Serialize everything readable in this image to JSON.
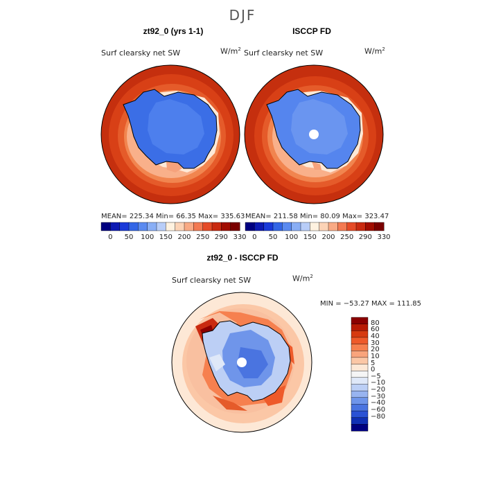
{
  "season": "DJF",
  "panels": [
    {
      "title": "zt92_0 (yrs 1-1)",
      "variable": "Surf clearsky net SW",
      "units_base": "W/m",
      "units_exp": "2",
      "stats": "MEAN= 225.34  Min=  66.35  Max= 335.63"
    },
    {
      "title": "ISCCP FD",
      "variable": "Surf clearsky net SW",
      "units_base": "W/m",
      "units_exp": "2",
      "stats": "MEAN= 211.58  Min=  80.09  Max= 323.47"
    }
  ],
  "abs_colorbar": {
    "tick_labels": [
      "0",
      "50",
      "100",
      "150",
      "200",
      "250",
      "290",
      "330"
    ],
    "colors": [
      "#000080",
      "#0d1ab3",
      "#1a3ad9",
      "#3366e6",
      "#5a8af0",
      "#89aef5",
      "#b8cdf8",
      "#fff2e0",
      "#fcd3b6",
      "#f9aa85",
      "#f37a52",
      "#e54b27",
      "#c92a10",
      "#a10d00",
      "#7a0000"
    ]
  },
  "diff_panel": {
    "title": "zt92_0 - ISCCP FD",
    "variable": "Surf clearsky net SW",
    "units_base": "W/m",
    "units_exp": "2",
    "stats": "MIN = −53.27 MAX = 111.85"
  },
  "diff_colorbar": {
    "tick_labels": [
      "80",
      "60",
      "40",
      "30",
      "20",
      "10",
      "5",
      "0",
      "−5",
      "−10",
      "−20",
      "−30",
      "−40",
      "−60",
      "−80"
    ],
    "colors": [
      "#8b0000",
      "#b81a04",
      "#d63a10",
      "#ee5a2a",
      "#f6804f",
      "#f9a47c",
      "#fbc7a6",
      "#fde8d6",
      "#f5f5f5",
      "#dfe8f8",
      "#bccff5",
      "#98b4f0",
      "#6f95ea",
      "#4a74e0",
      "#2a52d4",
      "#1030b4",
      "#000080"
    ]
  },
  "chart_data": [
    {
      "type": "heatmap",
      "title": "zt92_0 (yrs 1-1)",
      "description_variable": "Surf clearsky net SW",
      "units": "W/m2",
      "projection": "south-polar-stereographic",
      "mean": 225.34,
      "min": 66.35,
      "max": 335.63,
      "levels": [
        0,
        25,
        50,
        75,
        100,
        125,
        150,
        175,
        200,
        225,
        250,
        270,
        290,
        310,
        330
      ]
    },
    {
      "type": "heatmap",
      "title": "ISCCP FD",
      "description_variable": "Surf clearsky net SW",
      "units": "W/m2",
      "projection": "south-polar-stereographic",
      "mean": 211.58,
      "min": 80.09,
      "max": 323.47,
      "levels": [
        0,
        25,
        50,
        75,
        100,
        125,
        150,
        175,
        200,
        225,
        250,
        270,
        290,
        310,
        330
      ]
    },
    {
      "type": "heatmap",
      "title": "zt92_0 - ISCCP FD",
      "description_variable": "Surf clearsky net SW",
      "units": "W/m2",
      "projection": "south-polar-stereographic",
      "min": -53.27,
      "max": 111.85,
      "levels": [
        -80,
        -60,
        -40,
        -30,
        -20,
        -10,
        -5,
        0,
        5,
        10,
        20,
        30,
        40,
        60,
        80
      ]
    }
  ]
}
